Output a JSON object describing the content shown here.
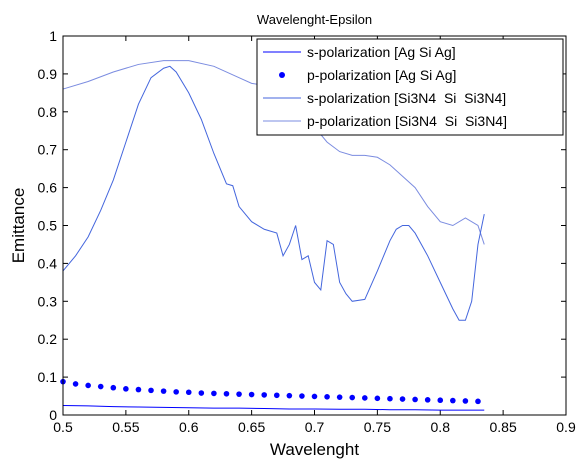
{
  "chart_data": {
    "type": "line",
    "title": "Wavelenght-Epsilon",
    "xlabel": "Wavelenght",
    "ylabel": "Emittance",
    "xlim": [
      0.5,
      0.9
    ],
    "ylim": [
      0,
      1
    ],
    "xticks": [
      "0.5",
      "0.55",
      "0.6",
      "0.65",
      "0.7",
      "0.75",
      "0.8",
      "0.85",
      "0.9"
    ],
    "yticks": [
      "0",
      "0.1",
      "0.2",
      "0.3",
      "0.4",
      "0.5",
      "0.6",
      "0.7",
      "0.8",
      "0.9",
      "1"
    ],
    "grid": false,
    "legend_position": "top-right",
    "series": [
      {
        "name": "s-polarization [Ag Si Ag]",
        "style": "line",
        "color": "#0000ff",
        "x": [
          0.5,
          0.52,
          0.54,
          0.56,
          0.58,
          0.6,
          0.62,
          0.64,
          0.66,
          0.68,
          0.7,
          0.72,
          0.74,
          0.76,
          0.78,
          0.8,
          0.82,
          0.835
        ],
        "y": [
          0.025,
          0.024,
          0.022,
          0.021,
          0.02,
          0.019,
          0.018,
          0.018,
          0.017,
          0.016,
          0.016,
          0.015,
          0.015,
          0.014,
          0.014,
          0.013,
          0.013,
          0.013
        ]
      },
      {
        "name": "p-polarization [Ag Si Ag]",
        "style": "dots",
        "color": "#0000ff",
        "x": [
          0.5,
          0.51,
          0.52,
          0.53,
          0.54,
          0.55,
          0.56,
          0.57,
          0.58,
          0.59,
          0.6,
          0.61,
          0.62,
          0.63,
          0.64,
          0.65,
          0.66,
          0.67,
          0.68,
          0.69,
          0.7,
          0.71,
          0.72,
          0.73,
          0.74,
          0.75,
          0.76,
          0.77,
          0.78,
          0.79,
          0.8,
          0.81,
          0.82,
          0.83
        ],
        "y": [
          0.088,
          0.082,
          0.078,
          0.075,
          0.072,
          0.069,
          0.067,
          0.065,
          0.063,
          0.061,
          0.06,
          0.058,
          0.057,
          0.056,
          0.055,
          0.054,
          0.053,
          0.052,
          0.051,
          0.05,
          0.049,
          0.048,
          0.047,
          0.046,
          0.045,
          0.044,
          0.043,
          0.042,
          0.041,
          0.04,
          0.039,
          0.038,
          0.037,
          0.036
        ]
      },
      {
        "name": "s-polarization [Si3N4  Si  Si3N4]",
        "style": "line",
        "color": "#4466dd",
        "x": [
          0.5,
          0.51,
          0.52,
          0.53,
          0.54,
          0.55,
          0.56,
          0.57,
          0.58,
          0.585,
          0.59,
          0.6,
          0.61,
          0.62,
          0.63,
          0.635,
          0.64,
          0.65,
          0.66,
          0.67,
          0.675,
          0.68,
          0.685,
          0.69,
          0.695,
          0.7,
          0.705,
          0.71,
          0.715,
          0.72,
          0.725,
          0.73,
          0.74,
          0.75,
          0.76,
          0.765,
          0.77,
          0.775,
          0.78,
          0.79,
          0.8,
          0.81,
          0.815,
          0.82,
          0.825,
          0.83,
          0.835
        ],
        "y": [
          0.38,
          0.42,
          0.47,
          0.54,
          0.62,
          0.72,
          0.82,
          0.89,
          0.915,
          0.92,
          0.905,
          0.85,
          0.78,
          0.69,
          0.61,
          0.605,
          0.55,
          0.51,
          0.49,
          0.48,
          0.42,
          0.45,
          0.5,
          0.41,
          0.42,
          0.35,
          0.33,
          0.46,
          0.45,
          0.35,
          0.32,
          0.3,
          0.305,
          0.38,
          0.46,
          0.49,
          0.5,
          0.5,
          0.48,
          0.42,
          0.35,
          0.28,
          0.25,
          0.25,
          0.3,
          0.45,
          0.53
        ]
      },
      {
        "name": "p-polarization [Si3N4  Si  Si3N4]",
        "style": "line",
        "color": "#7b8ce0",
        "x": [
          0.5,
          0.52,
          0.54,
          0.56,
          0.58,
          0.6,
          0.62,
          0.64,
          0.65,
          0.66,
          0.67,
          0.68,
          0.69,
          0.7,
          0.71,
          0.72,
          0.73,
          0.74,
          0.75,
          0.76,
          0.77,
          0.78,
          0.79,
          0.8,
          0.81,
          0.82,
          0.83,
          0.835
        ],
        "y": [
          0.86,
          0.88,
          0.905,
          0.925,
          0.935,
          0.935,
          0.92,
          0.89,
          0.875,
          0.87,
          0.86,
          0.84,
          0.8,
          0.76,
          0.72,
          0.695,
          0.685,
          0.685,
          0.68,
          0.66,
          0.63,
          0.6,
          0.55,
          0.51,
          0.5,
          0.52,
          0.5,
          0.45
        ]
      }
    ]
  }
}
